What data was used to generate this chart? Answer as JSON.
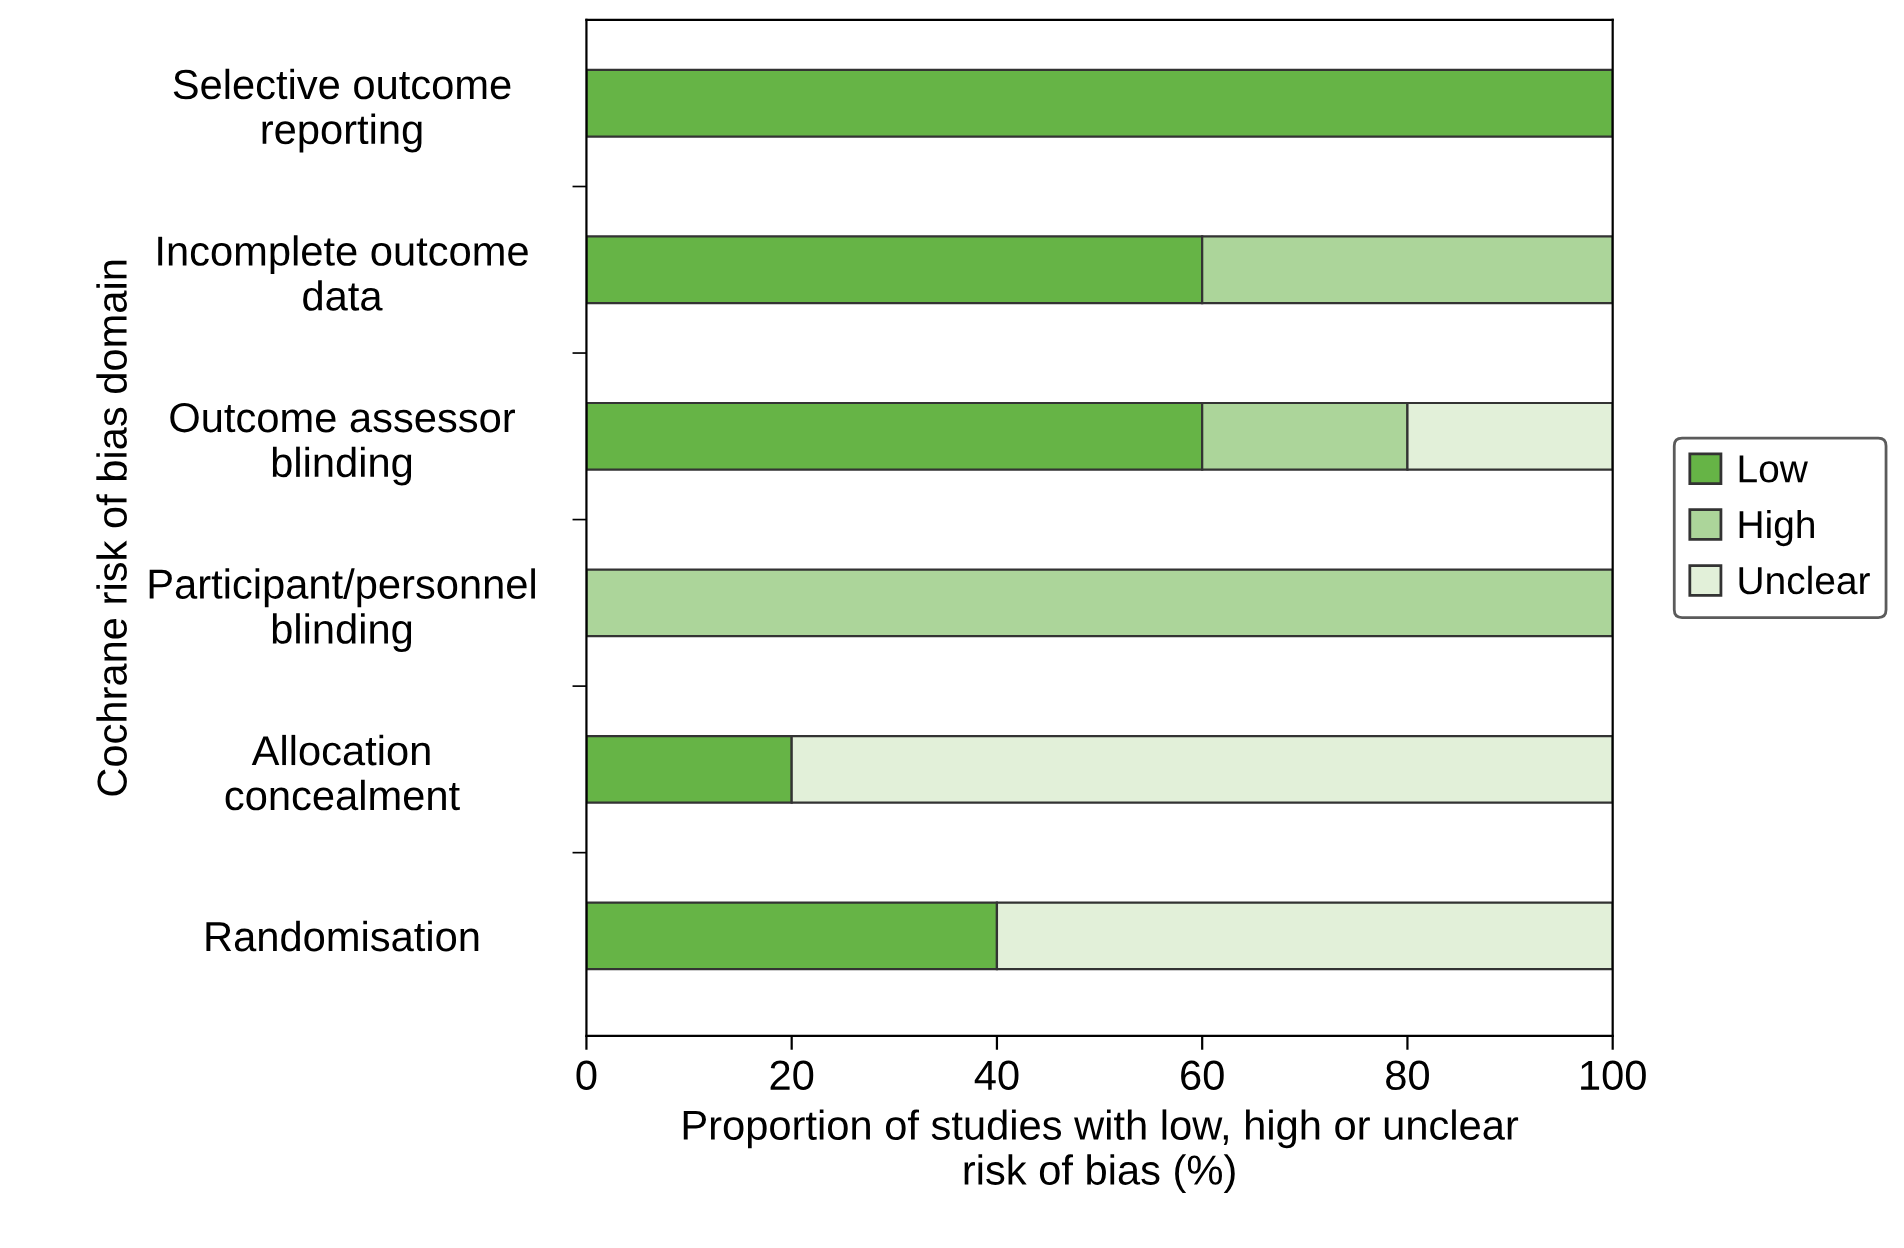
{
  "chart_data": {
    "type": "bar",
    "orientation": "horizontal",
    "stacked": true,
    "ylabel": "Cochrane risk of bias domain",
    "xlabel": "Proportion of studies with low, high or unclear\nrisk of bias (%)",
    "categories": [
      "Selective outcome\nreporting",
      "Incomplete outcome\ndata",
      "Outcome assessor\nblinding",
      "Participant/personnel\nblinding",
      "Allocation\nconcealment",
      "Randomisation"
    ],
    "series": [
      {
        "name": "Low",
        "color": "#66b446",
        "values": [
          100,
          60,
          60,
          null,
          20,
          40
        ]
      },
      {
        "name": "High",
        "color": "#acd59a",
        "values": [
          null,
          40,
          20,
          100,
          null,
          null
        ]
      },
      {
        "name": "Unclear",
        "color": "#e2f0d9",
        "values": [
          null,
          null,
          20,
          null,
          80,
          60
        ]
      }
    ],
    "xlim": [
      0,
      100
    ],
    "xticks": [
      0,
      20,
      40,
      60,
      80,
      100
    ],
    "grid": false,
    "legend": "right"
  }
}
